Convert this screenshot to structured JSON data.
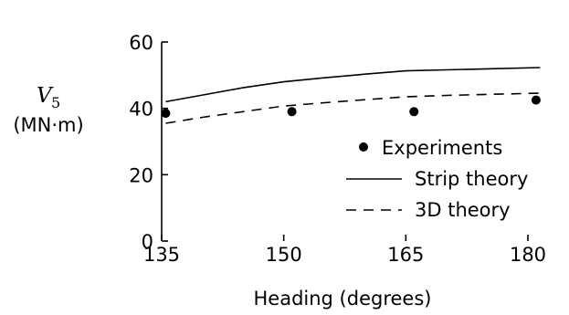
{
  "chart_data": {
    "type": "line",
    "xlabel": "Heading (degrees)",
    "ylabel": {
      "symbol": "V",
      "subscript": "5",
      "unit": "(MN·m)"
    },
    "xlim": [
      135,
      180
    ],
    "ylim": [
      0,
      60
    ],
    "x_ticks": [
      135,
      150,
      165,
      180
    ],
    "y_ticks": [
      0,
      20,
      40,
      60
    ],
    "grid": false,
    "legend_position": "lower-right",
    "series": [
      {
        "name": "Experiments",
        "style": "markers",
        "x": [
          135.5,
          151,
          166,
          181
        ],
        "y": [
          38.5,
          39,
          39,
          42.5
        ]
      },
      {
        "name": "Strip theory",
        "style": "solid",
        "x": [
          135.5,
          140,
          145,
          150,
          155,
          160,
          165,
          170,
          175,
          181.5
        ],
        "y": [
          42,
          44,
          46.2,
          48,
          49.2,
          50.3,
          51.3,
          51.6,
          51.9,
          52.3
        ]
      },
      {
        "name": "3D theory",
        "style": "dashed",
        "x": [
          135.5,
          140,
          145,
          150,
          155,
          160,
          165,
          170,
          175,
          181.5
        ],
        "y": [
          35.5,
          37.3,
          39,
          40.7,
          41.7,
          42.6,
          43.5,
          43.9,
          44.2,
          44.6
        ]
      }
    ]
  }
}
